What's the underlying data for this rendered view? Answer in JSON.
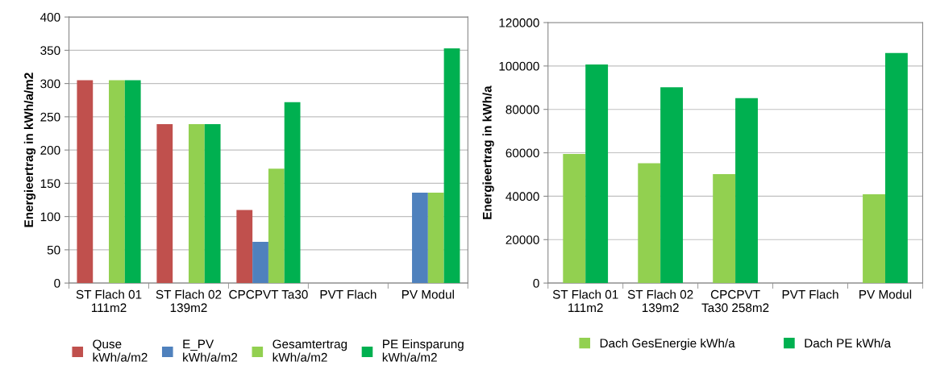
{
  "chart_data": [
    {
      "type": "bar",
      "ylabel": "Energieertrag in kWh/a/m2",
      "categories": [
        "ST Flach 01\n111m2",
        "ST Flach 02\n139m2",
        "CPCPVT Ta30",
        "PVT Flach",
        "PV Modul"
      ],
      "series": [
        {
          "name": "Quse\nkWh/a/m2",
          "color": "#c0504d",
          "values": [
            305,
            239,
            110,
            null,
            null
          ]
        },
        {
          "name": "E_PV\nkWh/a/m2",
          "color": "#4f81bd",
          "values": [
            null,
            null,
            62,
            null,
            136
          ]
        },
        {
          "name": "Gesamtertrag\nkWh/a/m2",
          "color": "#92d050",
          "values": [
            305,
            239,
            172,
            null,
            136
          ]
        },
        {
          "name": "PE Einsparung\nkWh/a/m2",
          "color": "#00b050",
          "values": [
            305,
            239,
            272,
            null,
            353
          ]
        }
      ],
      "ylim": [
        0,
        400
      ],
      "yticks": [
        0,
        50,
        100,
        150,
        200,
        250,
        300,
        350,
        400
      ],
      "grid": "y",
      "legend": "bottom"
    },
    {
      "type": "bar",
      "ylabel": "Energieertrag in kWh/a",
      "categories": [
        "ST Flach 01\n111m2",
        "ST Flach 02\n139m2",
        "CPCPVT\nTa30 258m2",
        "PVT Flach",
        "PV Modul"
      ],
      "series": [
        {
          "name": "Dach GesEnergie kWh/a",
          "color": "#92d050",
          "values": [
            59500,
            55200,
            50200,
            null,
            40900
          ]
        },
        {
          "name": "Dach PE kWh/a",
          "color": "#00b050",
          "values": [
            100700,
            90200,
            85200,
            null,
            106000
          ]
        }
      ],
      "ylim": [
        0,
        120000
      ],
      "yticks": [
        0,
        20000,
        40000,
        60000,
        80000,
        100000,
        120000
      ],
      "grid": "y",
      "legend": "bottom"
    }
  ]
}
